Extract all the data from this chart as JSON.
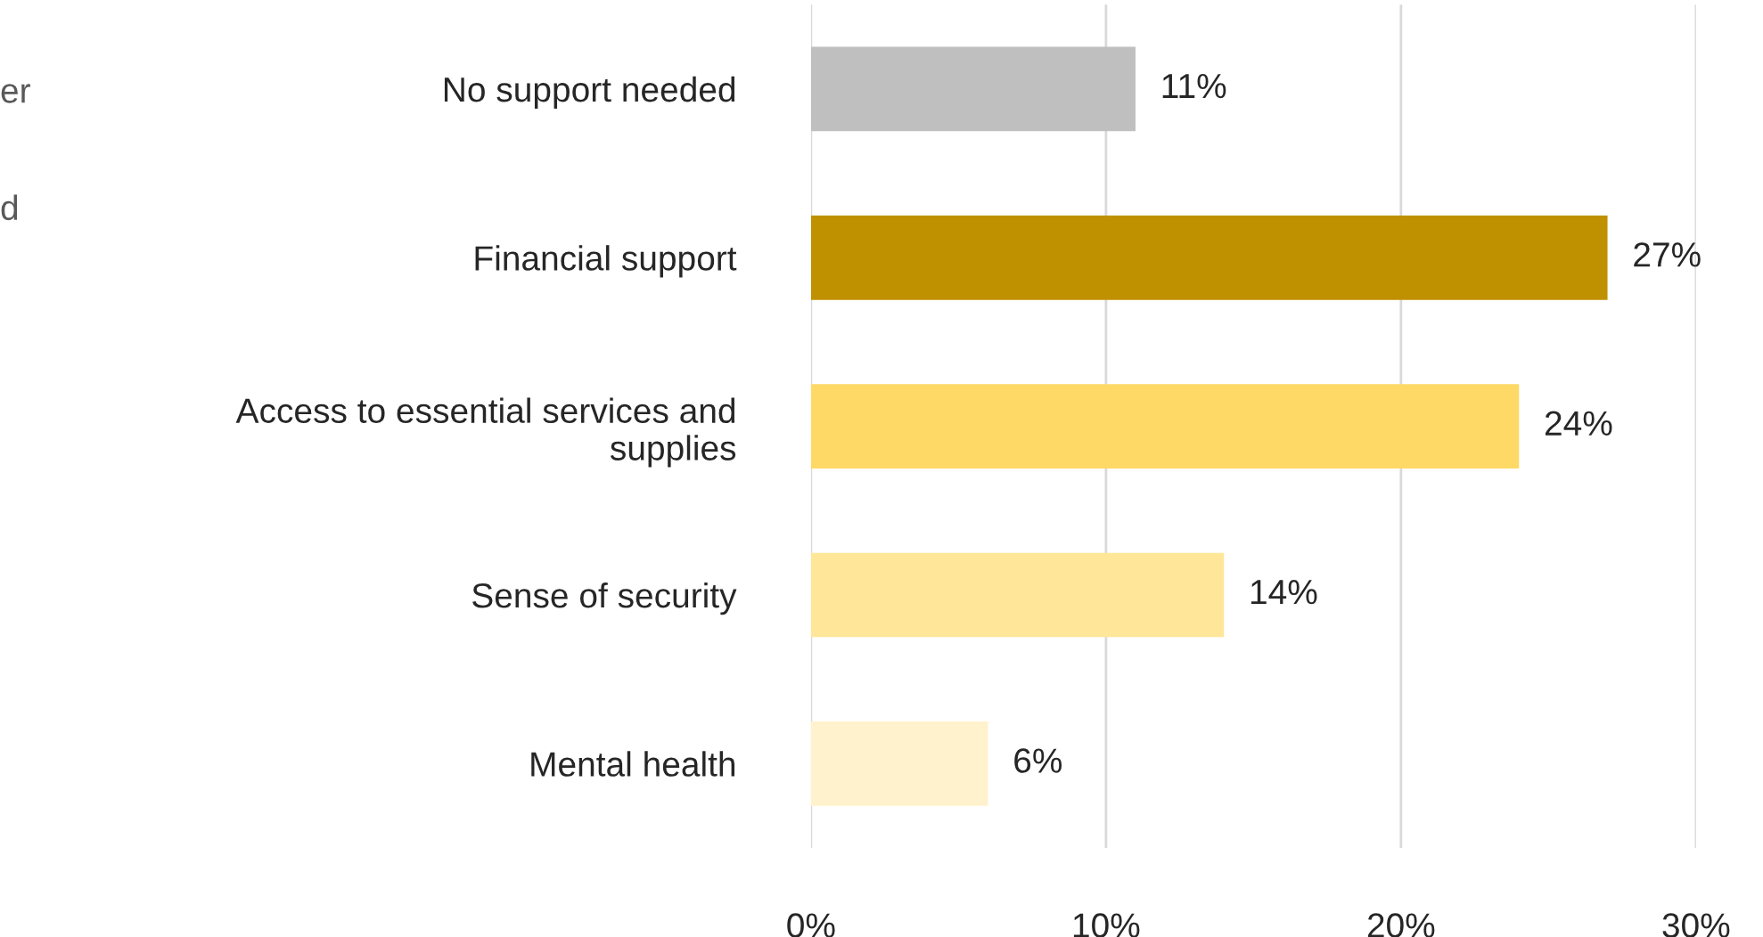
{
  "chart_data": {
    "type": "bar",
    "orientation": "horizontal",
    "categories": [
      "No support needed",
      "Financial support",
      "Access to essential services and\nsupplies",
      "Sense of security",
      "Mental health"
    ],
    "values": [
      11,
      27,
      24,
      14,
      6
    ],
    "colors": [
      "#bfbfbf",
      "#bf9000",
      "#ffd966",
      "#ffe699",
      "#fff2cc"
    ],
    "value_labels": [
      "11%",
      "27%",
      "24%",
      "14%",
      "6%"
    ],
    "xlim": [
      0,
      30
    ],
    "xticks": [
      {
        "value": 0,
        "label": "0%"
      },
      {
        "value": 10,
        "label": "10%"
      },
      {
        "value": 20,
        "label": "20%"
      },
      {
        "value": 30,
        "label": "30%"
      }
    ],
    "grid": "x",
    "annotations": [
      "er",
      "d"
    ]
  }
}
